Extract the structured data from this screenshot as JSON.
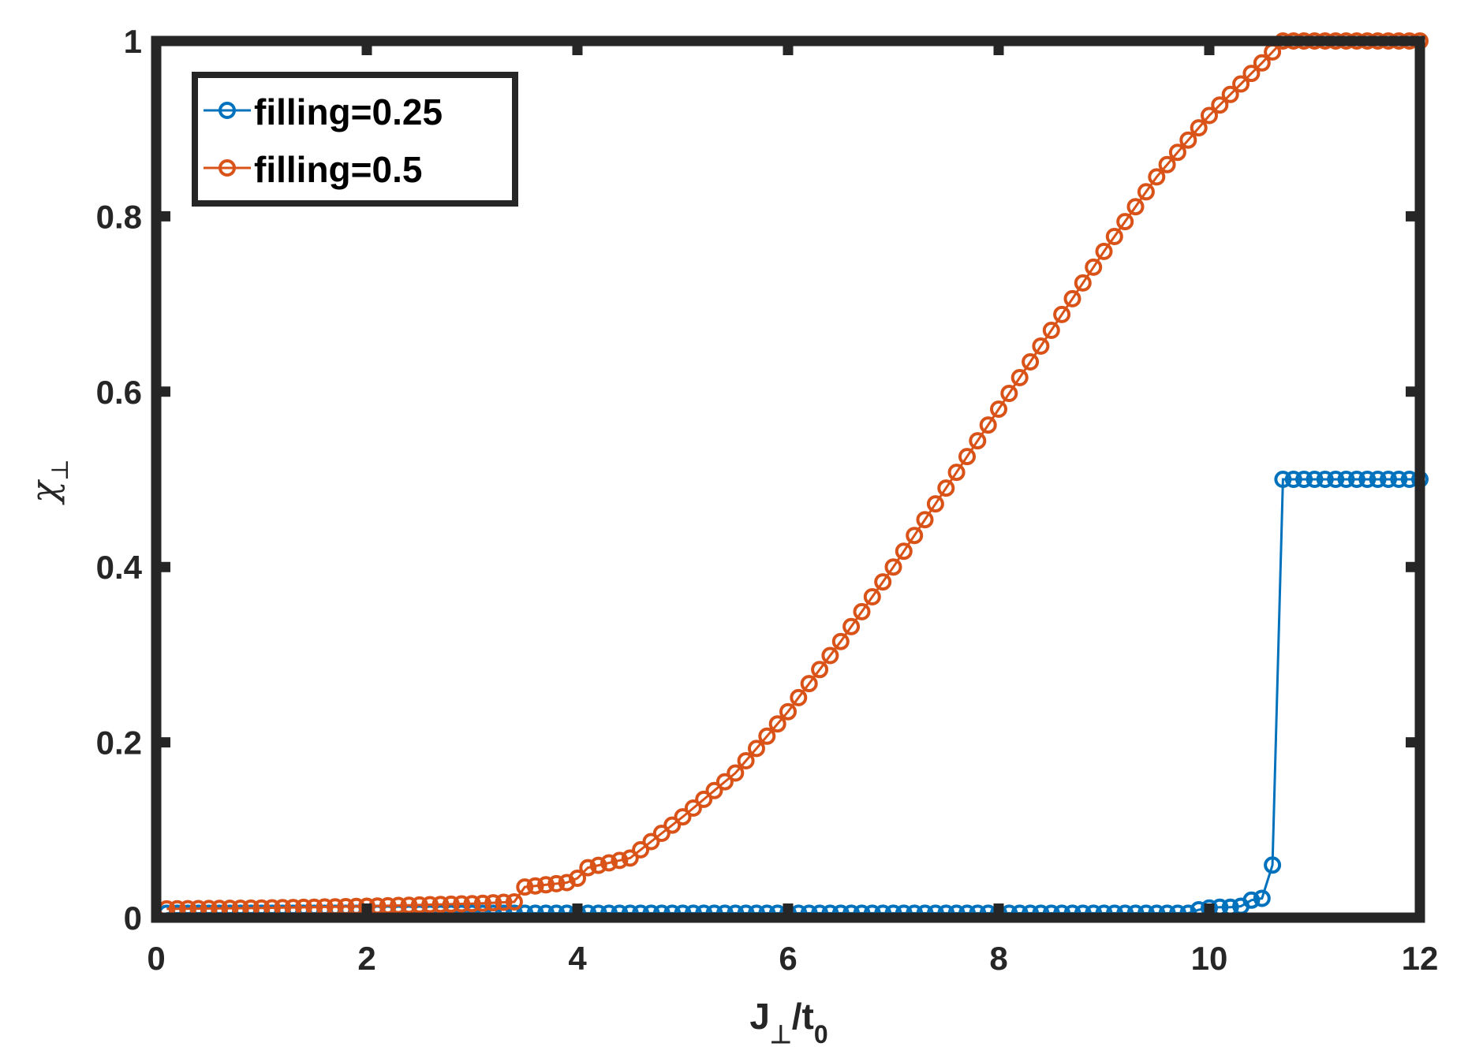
{
  "chart_data": {
    "type": "line",
    "title": "",
    "xlabel": {
      "main": "J",
      "sub1": "⊥",
      "mid": "/t",
      "sub2": "0"
    },
    "ylabel": {
      "main": "χ",
      "sub": "⊥"
    },
    "xlim": [
      0,
      12
    ],
    "ylim": [
      0,
      1
    ],
    "xticks": [
      0,
      2,
      4,
      6,
      8,
      10,
      12
    ],
    "yticks": [
      0,
      0.2,
      0.4,
      0.6,
      0.8,
      1
    ],
    "xtick_labels": [
      "0",
      "2",
      "4",
      "6",
      "8",
      "10",
      "12"
    ],
    "ytick_labels": [
      "0",
      "0.2",
      "0.4",
      "0.6",
      "0.8",
      "1"
    ],
    "grid": false,
    "legend_position": "top-left",
    "markers": "open-circle",
    "series": [
      {
        "name": "filling=0.25",
        "color": "#0072BD",
        "points": [
          [
            0.1,
            0.005
          ],
          [
            9.8,
            0.005
          ],
          [
            9.9,
            0.009
          ],
          [
            10.0,
            0.011
          ],
          [
            10.1,
            0.012
          ],
          [
            10.2,
            0.012
          ],
          [
            10.3,
            0.013
          ],
          [
            10.4,
            0.02
          ],
          [
            10.5,
            0.022
          ],
          [
            10.6,
            0.06
          ],
          [
            10.7,
            0.5
          ],
          [
            12.0,
            0.5
          ]
        ]
      },
      {
        "name": "filling=0.5",
        "color": "#D95319",
        "points": [
          [
            0.1,
            0.01
          ],
          [
            1.0,
            0.011
          ],
          [
            2.0,
            0.013
          ],
          [
            3.0,
            0.016
          ],
          [
            3.4,
            0.018
          ],
          [
            3.5,
            0.035
          ],
          [
            3.9,
            0.04
          ],
          [
            4.0,
            0.045
          ],
          [
            4.1,
            0.057
          ],
          [
            4.5,
            0.068
          ],
          [
            5.0,
            0.115
          ],
          [
            5.5,
            0.165
          ],
          [
            6.0,
            0.235
          ],
          [
            6.5,
            0.315
          ],
          [
            7.0,
            0.4
          ],
          [
            7.5,
            0.49
          ],
          [
            8.0,
            0.58
          ],
          [
            8.5,
            0.67
          ],
          [
            9.0,
            0.76
          ],
          [
            9.5,
            0.845
          ],
          [
            10.0,
            0.915
          ],
          [
            10.5,
            0.975
          ],
          [
            10.7,
            1.0
          ],
          [
            12.0,
            1.0
          ]
        ]
      }
    ]
  }
}
